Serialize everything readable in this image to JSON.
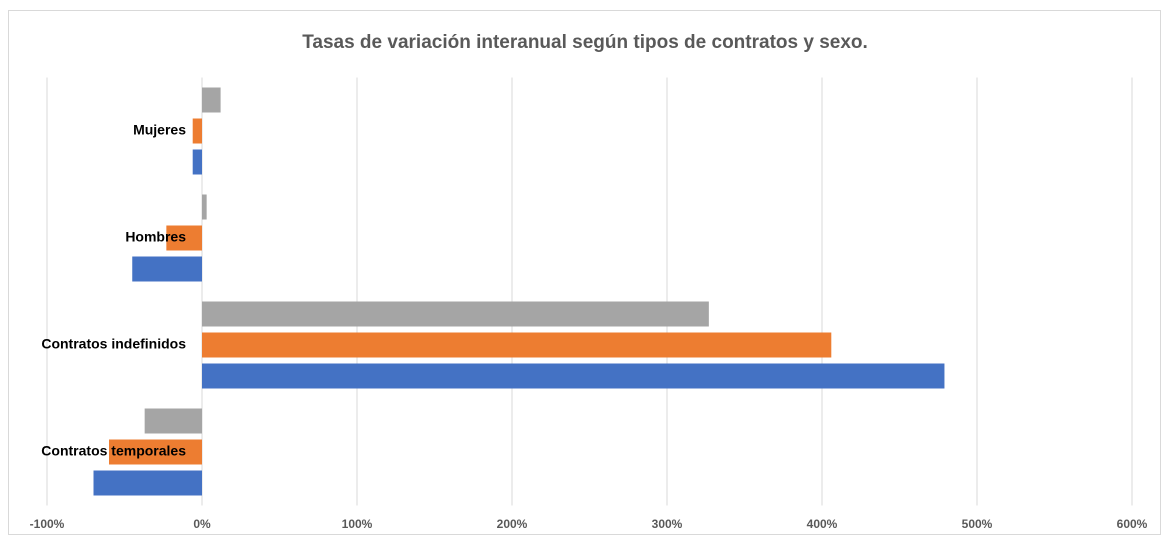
{
  "chart_data": {
    "type": "barh",
    "title": "Tasas de variación interanual según tipos de contratos y sexo.",
    "categories": [
      "Contratos temporales",
      "Contratos indefinidos",
      "Hombres",
      "Mujeres"
    ],
    "series": [
      {
        "color": "#4472c4",
        "values": [
          -70,
          479,
          -45,
          -6
        ]
      },
      {
        "color": "#ed7d31",
        "values": [
          -60,
          406,
          -23,
          -6
        ]
      },
      {
        "color": "#a5a5a5",
        "values": [
          -37,
          327,
          3,
          12
        ]
      }
    ],
    "xlim": [
      -100,
      600
    ],
    "xticks": [
      {
        "value": -100,
        "label": "-100%"
      },
      {
        "value": 0,
        "label": "0%"
      },
      {
        "value": 100,
        "label": "100%"
      },
      {
        "value": 200,
        "label": "200%"
      },
      {
        "value": 300,
        "label": "300%"
      },
      {
        "value": 400,
        "label": "400%"
      },
      {
        "value": 500,
        "label": "500%"
      },
      {
        "value": 600,
        "label": "600%"
      }
    ],
    "grid": true
  }
}
